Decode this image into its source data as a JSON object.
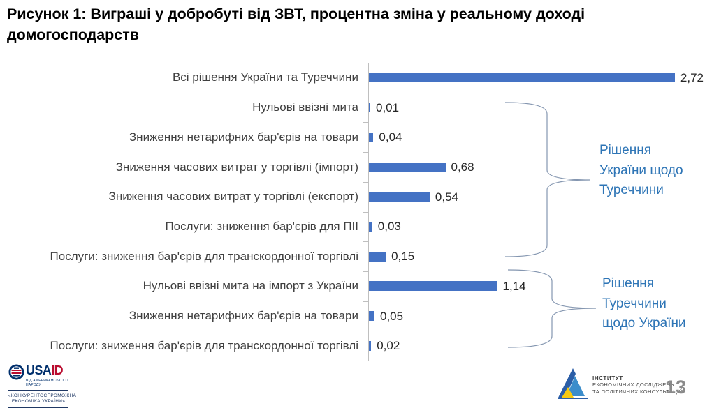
{
  "title": "Рисунок 1: Виграші у добробуті від ЗВТ, процентна зміна у реальному доході домогосподарств",
  "chart_data": {
    "type": "bar",
    "orientation": "horizontal",
    "title": "Виграші у добробуті від ЗВТ, процентна зміна у реальному доході домогосподарств",
    "xlabel": "",
    "ylabel": "",
    "xlim": [
      0,
      2.9
    ],
    "grid": false,
    "legend": "none",
    "categories": [
      "Всі рішення України та Туреччини",
      "Нульові ввізні мита",
      "Зниження нетарифних бар'єрів на товари",
      "Зниження часових витрат у торгівлі (імпорт)",
      "Зниження часових витрат у торгівлі (експорт)",
      "Послуги: зниження бар'єрів для ПІІ",
      "Послуги: зниження бар'єрів для транскордонної торгівлі",
      "Нульові ввізні мита на імпорт з України",
      "Зниження нетарифних бар'єрів на товари",
      "Послуги: зниження бар'єрів для транскордонної торгівлі"
    ],
    "values": [
      2.72,
      0.01,
      0.04,
      0.68,
      0.54,
      0.03,
      0.15,
      1.14,
      0.05,
      0.02
    ],
    "value_labels": [
      "2,72",
      "0,01",
      "0,04",
      "0,68",
      "0,54",
      "0,03",
      "0,15",
      "1,14",
      "0,05",
      "0,02"
    ],
    "annotations": [
      {
        "lines": [
          "Рішення",
          "України щодо",
          "Туреччини"
        ],
        "applies_to_bars": "2-7"
      },
      {
        "lines": [
          "Рішення",
          "Туреччини",
          "щодо України"
        ],
        "applies_to_bars": "8-10"
      }
    ],
    "colors": {
      "bar": "#4472c4",
      "annotation_text": "#2e75b6",
      "axis": "#bfbfbf",
      "brace": "#8496b0",
      "category_label": "#3f3f3f",
      "value_label": "#262626"
    }
  },
  "footer": {
    "usaid": {
      "brand_usa": "USA",
      "brand_id": "ID",
      "tagline": "ВІД АМЕРИКАНСЬКОГО НАРОДУ",
      "program_line1": "«КОНКУРЕНТОСПРОМОЖНА",
      "program_line2": "ЕКОНОМІКА УКРАЇНИ»"
    },
    "institute": {
      "line1": "ІНСТИТУТ",
      "line2": "ЕКОНОМІЧНИХ ДОСЛІДЖЕНЬ",
      "line3": "ТА ПОЛІТИЧНИХ КОНСУЛЬТАЦІЙ"
    },
    "page_number": "13"
  }
}
